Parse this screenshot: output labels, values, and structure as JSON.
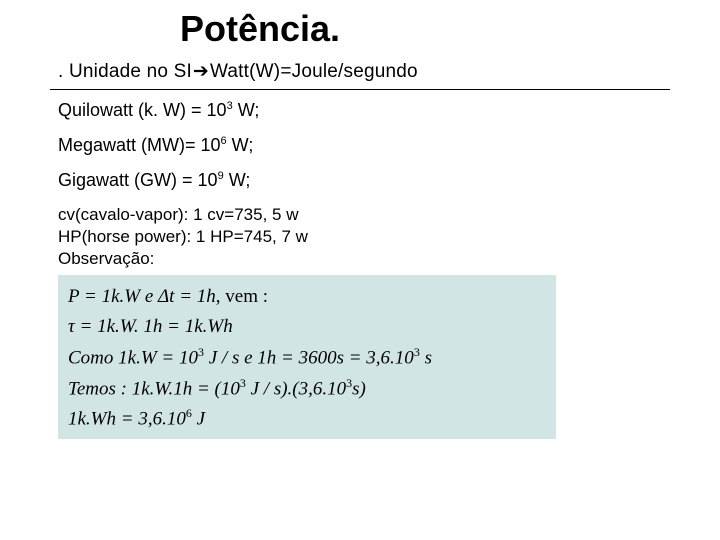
{
  "title": "Potência.",
  "subtitle_prefix": ". Unidade no SI",
  "subtitle_arrow": "➔",
  "subtitle_suffix": "Watt(W)=Joule/segundo",
  "units": {
    "kw": {
      "label": "Quilowatt (k. W) = 10",
      "exp": "3",
      "tail": " W;"
    },
    "mw": {
      "label": "Megawatt (MW)= 10",
      "exp": "6",
      "tail": " W;"
    },
    "gw": {
      "label": "Gigawatt (GW) = 10",
      "exp": "9",
      "tail": " W;"
    }
  },
  "cv_line": "cv(cavalo-vapor): 1 cv=735, 5 w",
  "hp_line": "HP(horse power): 1 HP=745, 7 w",
  "obs_line": "Observação:",
  "math": {
    "l1_a": "P = 1k.W   e   Δt = 1h",
    "l1_b": ", vem :",
    "l2": "τ = 1k.W. 1h = 1k.Wh",
    "l3_a": "Como 1k.W = 10",
    "l3_exp1": "3",
    "l3_b": " J / s   e   1h = 3600s = 3,6.10",
    "l3_exp2": "3",
    "l3_c": " s",
    "l4_a": "Temos :  1k.W.1h = (10",
    "l4_exp1": "3",
    "l4_b": " J / s).(3,6.10",
    "l4_exp2": "3",
    "l4_c": "s)",
    "l5_a": "1k.Wh = 3,6.10",
    "l5_exp": "6",
    "l5_b": " J"
  },
  "colors": {
    "math_bg": "#d1e5e5",
    "text": "#000000",
    "bg": "#ffffff"
  }
}
